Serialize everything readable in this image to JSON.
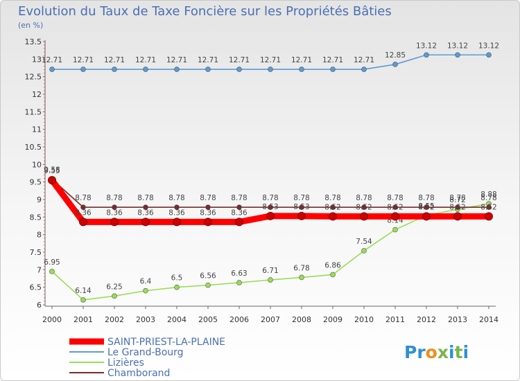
{
  "chart_data": {
    "type": "line",
    "title": "Evolution du Taux de Taxe Foncière sur les Propriétés Bâties",
    "subtitle": "(en %)",
    "xlabel": "",
    "ylabel": "",
    "x": [
      "2000",
      "2001",
      "2002",
      "2003",
      "2004",
      "2005",
      "2006",
      "2007",
      "2008",
      "2009",
      "2010",
      "2011",
      "2012",
      "2013",
      "2014"
    ],
    "ylim": [
      6,
      13.5
    ],
    "yticks": [
      "6",
      "6.5",
      "7",
      "7.5",
      "8",
      "8.5",
      "9",
      "9.5",
      "10",
      "10.5",
      "11",
      "11.5",
      "12",
      "12.5",
      "13",
      "13.5"
    ],
    "grid": false,
    "legend_position": "bottom-left",
    "series": [
      {
        "name": "SAINT-PRIEST-LA-PLAINE",
        "color": "#ff0000",
        "values": [
          9.55,
          8.36,
          8.36,
          8.36,
          8.36,
          8.36,
          8.36,
          8.53,
          8.53,
          8.52,
          8.52,
          8.52,
          8.52,
          8.52,
          8.52
        ],
        "labels": [
          "9.55",
          "8.36",
          "8.36",
          "8.36",
          "8.36",
          "8.36",
          "8.36",
          "8.53",
          "8.53",
          "8.52",
          "8.52",
          "8.52",
          "8.52",
          "8.52",
          "8.52"
        ]
      },
      {
        "name": "Le Grand-Bourg",
        "color": "#5b9bd5",
        "values": [
          12.71,
          12.71,
          12.71,
          12.71,
          12.71,
          12.71,
          12.71,
          12.71,
          12.71,
          12.71,
          12.71,
          12.85,
          13.12,
          13.12,
          13.12
        ],
        "labels": [
          "12.71",
          "12.71",
          "12.71",
          "12.71",
          "12.71",
          "12.71",
          "12.71",
          "12.71",
          "12.71",
          "12.71",
          "12.71",
          "12.85",
          "13.12",
          "13.12",
          "13.12"
        ]
      },
      {
        "name": "Lizières",
        "color": "#99dd55",
        "values": [
          6.95,
          6.14,
          6.25,
          6.4,
          6.5,
          6.56,
          6.63,
          6.71,
          6.78,
          6.86,
          7.54,
          8.14,
          8.55,
          8.72,
          8.88
        ],
        "labels": [
          "6.95",
          "6.14",
          "6.25",
          "6.4",
          "6.5",
          "6.56",
          "6.63",
          "6.71",
          "6.78",
          "6.86",
          "7.54",
          "8.14",
          "8.55",
          "8.72",
          "8.88"
        ]
      },
      {
        "name": "Chamborand",
        "color": "#7a2a2a",
        "values": [
          9.58,
          8.78,
          8.78,
          8.78,
          8.78,
          8.78,
          8.78,
          8.78,
          8.78,
          8.78,
          8.78,
          8.78,
          8.78,
          8.78,
          8.78
        ],
        "labels": [
          "9.58",
          "8.78",
          "8.78",
          "8.78",
          "8.78",
          "8.78",
          "8.78",
          "8.78",
          "8.78",
          "8.78",
          "8.78",
          "8.78",
          "8.78",
          "8.78",
          "8.78"
        ]
      }
    ]
  },
  "brand": {
    "name": "Proxiti"
  }
}
